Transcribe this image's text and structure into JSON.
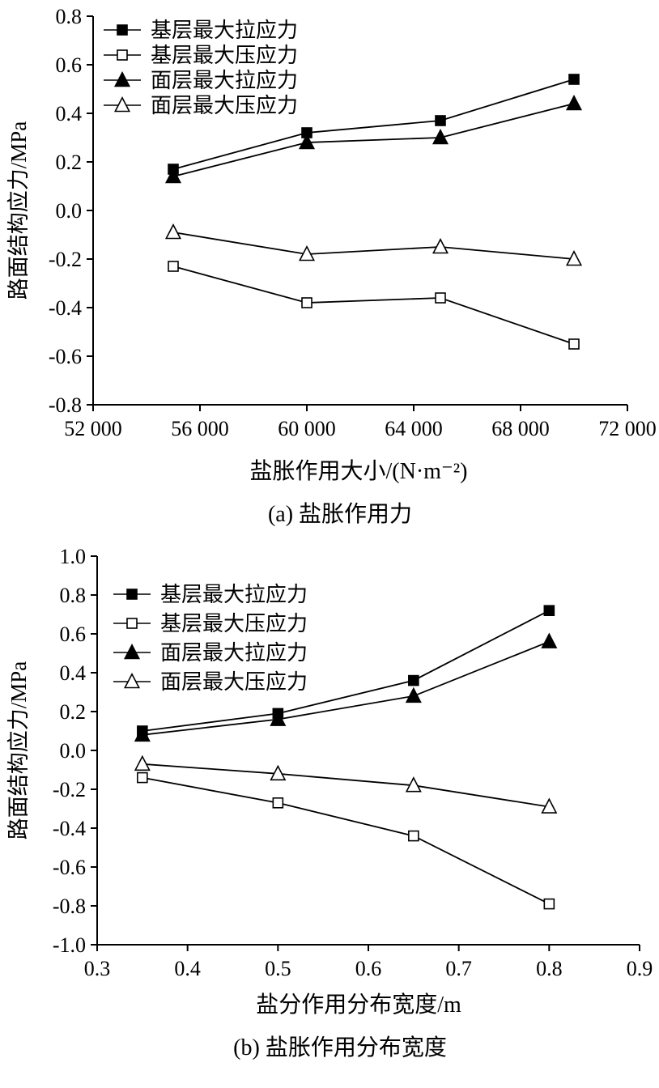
{
  "page": {
    "background": "#ffffff",
    "foreground": "#000000"
  },
  "chart_data": [
    {
      "type": "line",
      "caption": "(a) 盐胀作用力",
      "xlabel": "盐胀作用大小/(N·m⁻²)",
      "ylabel": "路面结构应力/MPa",
      "xlim": [
        52000,
        72000
      ],
      "ylim": [
        -0.8,
        0.8
      ],
      "xticks": [
        52000,
        56000,
        60000,
        64000,
        68000,
        72000
      ],
      "xtick_labels": [
        "52 000",
        "56 000",
        "60 000",
        "64 000",
        "68 000",
        "72 000"
      ],
      "yticks": [
        0.8,
        0.6,
        0.4,
        0.2,
        0.0,
        -0.2,
        -0.4,
        -0.6,
        -0.8
      ],
      "ytick_labels": [
        "0.8",
        "0.6",
        "0.4",
        "0.2",
        "0.0",
        "-0.2",
        "-0.4",
        "-0.6",
        "-0.8"
      ],
      "x": [
        55000,
        60000,
        65000,
        70000
      ],
      "series": [
        {
          "name": "基层最大拉应力",
          "marker": "square-filled",
          "values": [
            0.17,
            0.32,
            0.37,
            0.54
          ]
        },
        {
          "name": "基层最大压应力",
          "marker": "square-open",
          "values": [
            -0.23,
            -0.38,
            -0.36,
            -0.55
          ]
        },
        {
          "name": "面层最大拉应力",
          "marker": "triangle-filled",
          "values": [
            0.14,
            0.28,
            0.3,
            0.44
          ]
        },
        {
          "name": "面层最大压应力",
          "marker": "triangle-open",
          "values": [
            -0.09,
            -0.18,
            -0.15,
            -0.2
          ]
        }
      ],
      "grid": false,
      "legend_position": "top-left",
      "line_color": "#000000"
    },
    {
      "type": "line",
      "caption": "(b) 盐胀作用分布宽度",
      "xlabel": "盐分作用分布宽度/m",
      "ylabel": "路面结构应力/MPa",
      "xlim": [
        0.3,
        0.9
      ],
      "ylim": [
        -1.0,
        1.0
      ],
      "xticks": [
        0.3,
        0.4,
        0.5,
        0.6,
        0.7,
        0.8,
        0.9
      ],
      "xtick_labels": [
        "0.3",
        "0.4",
        "0.5",
        "0.6",
        "0.7",
        "0.8",
        "0.9"
      ],
      "yticks": [
        1.0,
        0.8,
        0.6,
        0.4,
        0.2,
        0.0,
        -0.2,
        -0.4,
        -0.6,
        -0.8,
        -1.0
      ],
      "ytick_labels": [
        "1.0",
        "0.8",
        "0.6",
        "0.4",
        "0.2",
        "0.0",
        "-0.2",
        "-0.4",
        "-0.6",
        "-0.8",
        "-1.0"
      ],
      "x": [
        0.35,
        0.5,
        0.65,
        0.8
      ],
      "series": [
        {
          "name": "基层最大拉应力",
          "marker": "square-filled",
          "values": [
            0.1,
            0.19,
            0.36,
            0.72
          ]
        },
        {
          "name": "基层最大压应力",
          "marker": "square-open",
          "values": [
            -0.14,
            -0.27,
            -0.44,
            -0.79
          ]
        },
        {
          "name": "面层最大拉应力",
          "marker": "triangle-filled",
          "values": [
            0.08,
            0.16,
            0.28,
            0.56
          ]
        },
        {
          "name": "面层最大压应力",
          "marker": "triangle-open",
          "values": [
            -0.07,
            -0.12,
            -0.18,
            -0.29
          ]
        }
      ],
      "grid": false,
      "legend_position": "top-left",
      "line_color": "#000000"
    }
  ]
}
